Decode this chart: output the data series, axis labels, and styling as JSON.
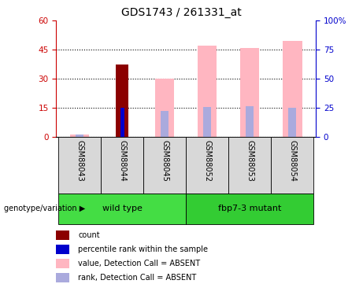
{
  "title": "GDS1743 / 261331_at",
  "samples": [
    "GSM88043",
    "GSM88044",
    "GSM88045",
    "GSM88052",
    "GSM88053",
    "GSM88054"
  ],
  "groups": [
    {
      "name": "wild type",
      "indices": [
        0,
        1,
        2
      ],
      "color": "#44dd44"
    },
    {
      "name": "fbp7-3 mutant",
      "indices": [
        3,
        4,
        5
      ],
      "color": "#33cc33"
    }
  ],
  "ylim_left": [
    0,
    60
  ],
  "ylim_right": [
    0,
    100
  ],
  "yticks_left": [
    0,
    15,
    30,
    45,
    60
  ],
  "yticks_right": [
    0,
    25,
    50,
    75,
    100
  ],
  "ytick_labels_left": [
    "0",
    "15",
    "30",
    "45",
    "60"
  ],
  "ytick_labels_right": [
    "0",
    "25",
    "50",
    "75",
    "100%"
  ],
  "count_bars": {
    "GSM88044": 37.5
  },
  "rank_bars": {
    "GSM88044": 15.0
  },
  "absent_value_bars": {
    "GSM88043": 1.5,
    "GSM88045": 30.0,
    "GSM88052": 47.0,
    "GSM88053": 46.0,
    "GSM88054": 49.5
  },
  "absent_rank_bars": {
    "GSM88043": 1.5,
    "GSM88045": 13.5,
    "GSM88052": 15.5,
    "GSM88053": 16.0,
    "GSM88054": 15.0
  },
  "count_color": "#8B0000",
  "rank_color": "#0000CC",
  "absent_value_color": "#FFB6C1",
  "absent_rank_color": "#AAAADD",
  "legend_items": [
    {
      "label": "count",
      "color": "#8B0000"
    },
    {
      "label": "percentile rank within the sample",
      "color": "#0000CC"
    },
    {
      "label": "value, Detection Call = ABSENT",
      "color": "#FFB6C1"
    },
    {
      "label": "rank, Detection Call = ABSENT",
      "color": "#AAAADD"
    }
  ],
  "left_tick_color": "#CC0000",
  "right_tick_color": "#0000CC",
  "genotype_label": "genotype/variation"
}
